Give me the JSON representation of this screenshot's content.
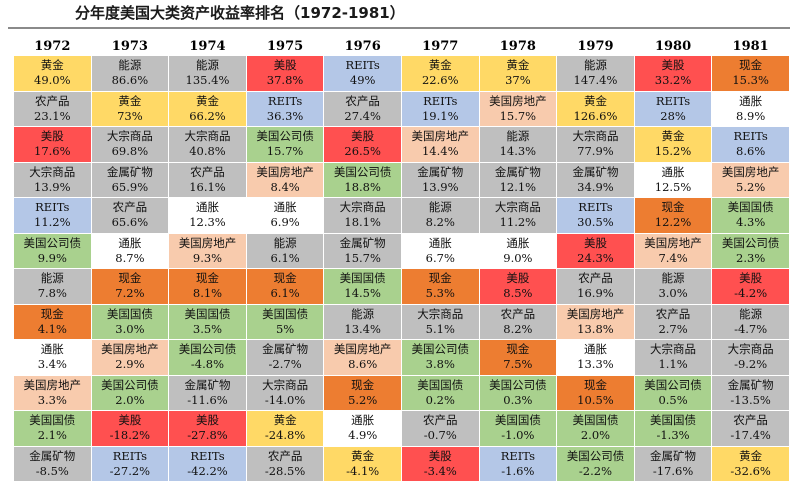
{
  "title": "分年度美国大类资产收益率排名（1972-1981）",
  "colors": {
    "黄金": "#FFD966",
    "能源": "#BFBFBF",
    "美股": "#FF5050",
    "REITs": "#B4C7E7",
    "现金": "#ED7D31",
    "农产品": "#BFBFBF",
    "通胀": "#FFFFFF",
    "美国房地产": "#F8CBAD",
    "大宗商品": "#BFBFBF",
    "美国公司债": "#A9D18E",
    "金属矿物": "#BFBFBF",
    "美国国债": "#A9D18E"
  },
  "chart_data": {
    "type": "table",
    "title": "分年度美国大类资产收益率排名（1972-1981）",
    "years": [
      "1972",
      "1973",
      "1974",
      "1975",
      "1976",
      "1977",
      "1978",
      "1979",
      "1980",
      "1981"
    ],
    "columns": [
      [
        [
          "黄金",
          "49.0%"
        ],
        [
          "农产品",
          "23.1%"
        ],
        [
          "美股",
          "17.6%"
        ],
        [
          "大宗商品",
          "13.9%"
        ],
        [
          "REITs",
          "11.2%"
        ],
        [
          "美国公司债",
          "9.9%"
        ],
        [
          "能源",
          "7.8%"
        ],
        [
          "现金",
          "4.1%"
        ],
        [
          "通胀",
          "3.4%"
        ],
        [
          "美国房地产",
          "3.3%"
        ],
        [
          "美国国债",
          "2.1%"
        ],
        [
          "金属矿物",
          "-8.5%"
        ]
      ],
      [
        [
          "能源",
          "86.6%"
        ],
        [
          "黄金",
          "73%"
        ],
        [
          "大宗商品",
          "69.8%"
        ],
        [
          "金属矿物",
          "65.9%"
        ],
        [
          "农产品",
          "65.6%"
        ],
        [
          "通胀",
          "8.7%"
        ],
        [
          "现金",
          "7.2%"
        ],
        [
          "美国国债",
          "3.0%"
        ],
        [
          "美国房地产",
          "2.9%"
        ],
        [
          "美国公司债",
          "2.0%"
        ],
        [
          "美股",
          "-18.2%"
        ],
        [
          "REITs",
          "-27.2%"
        ]
      ],
      [
        [
          "能源",
          "135.4%"
        ],
        [
          "黄金",
          "66.2%"
        ],
        [
          "大宗商品",
          "40.8%"
        ],
        [
          "农产品",
          "16.1%"
        ],
        [
          "通胀",
          "12.3%"
        ],
        [
          "美国房地产",
          "9.3%"
        ],
        [
          "现金",
          "8.1%"
        ],
        [
          "美国国债",
          "3.5%"
        ],
        [
          "美国公司债",
          "-4.8%"
        ],
        [
          "金属矿物",
          "-11.6%"
        ],
        [
          "美股",
          "-27.8%"
        ],
        [
          "REITs",
          "-42.2%"
        ]
      ],
      [
        [
          "美股",
          "37.8%"
        ],
        [
          "REITs",
          "36.3%"
        ],
        [
          "美国公司债",
          "15.7%"
        ],
        [
          "美国房地产",
          "8.4%"
        ],
        [
          "通胀",
          "6.9%"
        ],
        [
          "能源",
          "6.1%"
        ],
        [
          "现金",
          "6.1%"
        ],
        [
          "美国国债",
          "5%"
        ],
        [
          "金属矿物",
          "-2.7%"
        ],
        [
          "大宗商品",
          "-14.0%"
        ],
        [
          "黄金",
          "-24.8%"
        ],
        [
          "农产品",
          "-28.5%"
        ]
      ],
      [
        [
          "REITs",
          "49%"
        ],
        [
          "农产品",
          "27.4%"
        ],
        [
          "美股",
          "26.5%"
        ],
        [
          "美国公司债",
          "18.8%"
        ],
        [
          "大宗商品",
          "18.1%"
        ],
        [
          "金属矿物",
          "15.7%"
        ],
        [
          "美国国债",
          "14.5%"
        ],
        [
          "能源",
          "13.4%"
        ],
        [
          "美国房地产",
          "8.6%"
        ],
        [
          "现金",
          "5.2%"
        ],
        [
          "通胀",
          "4.9%"
        ],
        [
          "黄金",
          "-4.1%"
        ]
      ],
      [
        [
          "黄金",
          "22.6%"
        ],
        [
          "REITs",
          "19.1%"
        ],
        [
          "美国房地产",
          "14.4%"
        ],
        [
          "金属矿物",
          "13.9%"
        ],
        [
          "能源",
          "8.2%"
        ],
        [
          "通胀",
          "6.7%"
        ],
        [
          "现金",
          "5.3%"
        ],
        [
          "大宗商品",
          "5.1%"
        ],
        [
          "美国公司债",
          "3.8%"
        ],
        [
          "美国国债",
          "0.2%"
        ],
        [
          "农产品",
          "-0.7%"
        ],
        [
          "美股",
          "-3.4%"
        ]
      ],
      [
        [
          "黄金",
          "37%"
        ],
        [
          "美国房地产",
          "15.7%"
        ],
        [
          "能源",
          "14.3%"
        ],
        [
          "金属矿物",
          "12.1%"
        ],
        [
          "大宗商品",
          "11.2%"
        ],
        [
          "通胀",
          "9.0%"
        ],
        [
          "美股",
          "8.5%"
        ],
        [
          "农产品",
          "8.2%"
        ],
        [
          "现金",
          "7.5%"
        ],
        [
          "美国公司债",
          "0.3%"
        ],
        [
          "美国国债",
          "-1.0%"
        ],
        [
          "REITs",
          "-1.6%"
        ]
      ],
      [
        [
          "能源",
          "147.4%"
        ],
        [
          "黄金",
          "126.6%"
        ],
        [
          "大宗商品",
          "77.9%"
        ],
        [
          "金属矿物",
          "34.9%"
        ],
        [
          "REITs",
          "30.5%"
        ],
        [
          "美股",
          "24.3%"
        ],
        [
          "农产品",
          "16.9%"
        ],
        [
          "美国房地产",
          "13.8%"
        ],
        [
          "通胀",
          "13.3%"
        ],
        [
          "现金",
          "10.5%"
        ],
        [
          "美国国债",
          "2.0%"
        ],
        [
          "美国公司债",
          "-2.2%"
        ]
      ],
      [
        [
          "美股",
          "33.2%"
        ],
        [
          "REITs",
          "28%"
        ],
        [
          "黄金",
          "15.2%"
        ],
        [
          "通胀",
          "12.5%"
        ],
        [
          "现金",
          "12.2%"
        ],
        [
          "美国房地产",
          "7.4%"
        ],
        [
          "能源",
          "3.0%"
        ],
        [
          "农产品",
          "2.7%"
        ],
        [
          "大宗商品",
          "1.1%"
        ],
        [
          "美国公司债",
          "0.5%"
        ],
        [
          "美国国债",
          "-1.3%"
        ],
        [
          "金属矿物",
          "-17.6%"
        ]
      ],
      [
        [
          "现金",
          "15.3%"
        ],
        [
          "通胀",
          "8.9%"
        ],
        [
          "REITs",
          "8.6%"
        ],
        [
          "美国房地产",
          "5.2%"
        ],
        [
          "美国国债",
          "4.3%"
        ],
        [
          "美国公司债",
          "2.3%"
        ],
        [
          "美股",
          "-4.2%"
        ],
        [
          "能源",
          "-4.7%"
        ],
        [
          "大宗商品",
          "-9.2%"
        ],
        [
          "金属矿物",
          "-13.5%"
        ],
        [
          "农产品",
          "-17.4%"
        ],
        [
          "黄金",
          "-32.6%"
        ]
      ]
    ]
  }
}
